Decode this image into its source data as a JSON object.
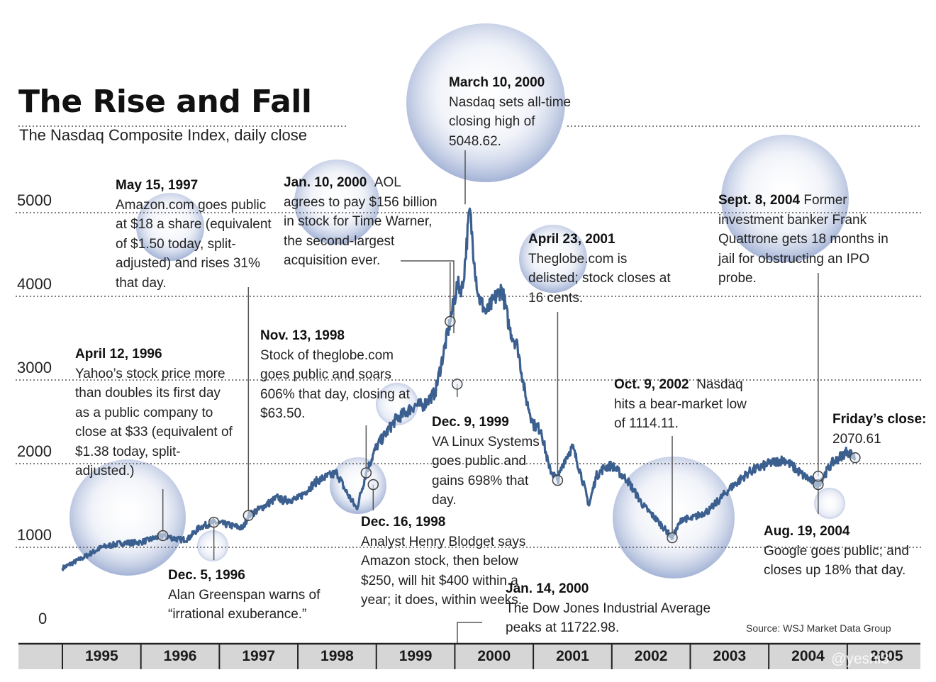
{
  "chart_data": {
    "type": "line",
    "title": "The Rise and Fall",
    "subtitle": "The Nasdaq Composite Index, daily close",
    "ylim": [
      0,
      5000
    ],
    "yticks": [
      "0",
      "1000",
      "2000",
      "3000",
      "4000",
      "5000"
    ],
    "xticks": [
      "1995",
      "1996",
      "1997",
      "1998",
      "1999",
      "2000",
      "2001",
      "2002",
      "2003",
      "2004",
      "2005"
    ],
    "grid": "dotted horizontal",
    "series": [
      {
        "color": "#3b5f8f",
        "x": [
          1995.0,
          1995.25,
          1995.5,
          1995.75,
          1996.0,
          1996.28,
          1996.5,
          1996.6,
          1996.75,
          1996.93,
          1997.0,
          1997.3,
          1997.37,
          1997.5,
          1997.75,
          1997.8,
          1998.0,
          1998.25,
          1998.5,
          1998.6,
          1998.75,
          1998.87,
          1999.0,
          1999.25,
          1999.5,
          1999.6,
          1999.75,
          1999.94,
          2000.03,
          2000.1,
          2000.19,
          2000.25,
          2000.3,
          2000.4,
          2000.5,
          2000.6,
          2000.7,
          2000.8,
          2000.9,
          2001.0,
          2001.1,
          2001.2,
          2001.31,
          2001.4,
          2001.5,
          2001.6,
          2001.71,
          2001.8,
          2001.9,
          2002.0,
          2002.2,
          2002.4,
          2002.6,
          2002.77,
          2002.9,
          2003.0,
          2003.25,
          2003.5,
          2003.75,
          2004.0,
          2004.2,
          2004.45,
          2004.63,
          2004.8,
          2005.0,
          2005.1
        ],
        "y": [
          751,
          870,
          1000,
          1050,
          1060,
          1140,
          1090,
          1100,
          1240,
          1300,
          1290,
          1230,
          1380,
          1450,
          1600,
          1560,
          1580,
          1800,
          1890,
          1690,
          1460,
          1890,
          2200,
          2530,
          2700,
          2700,
          2850,
          3700,
          4130,
          4100,
          5048.62,
          4400,
          4000,
          3800,
          3960,
          4100,
          3600,
          3400,
          2800,
          2470,
          2400,
          1950,
          1800,
          2050,
          2200,
          1900,
          1500,
          1850,
          1950,
          1980,
          1800,
          1500,
          1300,
          1114.11,
          1350,
          1335,
          1450,
          1700,
          1900,
          2000,
          2050,
          1850,
          1750,
          2000,
          2150,
          2070.61
        ]
      }
    ],
    "annotations": [
      {
        "date": "May 15, 1997",
        "text": "Amazon.com goes public at $18 a share (equivalent of $1.50 today, split-adjusted) and rises 31% that day."
      },
      {
        "date": "Jan. 10, 2000",
        "text": "AOL agrees to pay $156 billion in stock for Time Warner, the second-largest acquisition ever."
      },
      {
        "date": "March 10, 2000",
        "text": "Nasdaq sets all-time closing high of 5048.62."
      },
      {
        "date": "April 23, 2001",
        "text": "Theglobe.com is delisted; stock closes at 16 cents."
      },
      {
        "date": "Sept. 8, 2004",
        "text": "Former investment banker Frank Quattrone gets 18 months in jail for obstructing an IPO probe."
      },
      {
        "date": "April 12, 1996",
        "text": "Yahoo’s stock price more than doubles its first day as a public company to close at $33 (equivalent of $1.38 today, split-adjusted.)"
      },
      {
        "date": "Nov. 13, 1998",
        "text": "Stock of theglobe.com goes public and soars 606% that day, closing at $63.50."
      },
      {
        "date": "Dec. 9, 1999",
        "text": "VA Linux Systems goes public and gains 698% that day."
      },
      {
        "date": "Oct. 9, 2002",
        "text": "Nasdaq hits a bear-market low of 1114.11."
      },
      {
        "date": "Friday’s close:",
        "text": "2070.61"
      },
      {
        "date": "Dec. 5, 1996",
        "text": "Alan Greenspan warns of “irrational exuberance.”"
      },
      {
        "date": "Dec. 16, 1998",
        "text": "Analyst Henry Blodget says Amazon stock, then below $250, will hit $400 within a year; it does, within weeks."
      },
      {
        "date": "Jan. 14, 2000",
        "text": "The Dow Jones Industrial Average peaks at 11722.98."
      },
      {
        "date": "Aug. 19, 2004",
        "text": "Google goes public; and closes up 18% that day."
      }
    ],
    "source": "Source: WSJ Market Data Group"
  },
  "watermark": "@yeshi3"
}
